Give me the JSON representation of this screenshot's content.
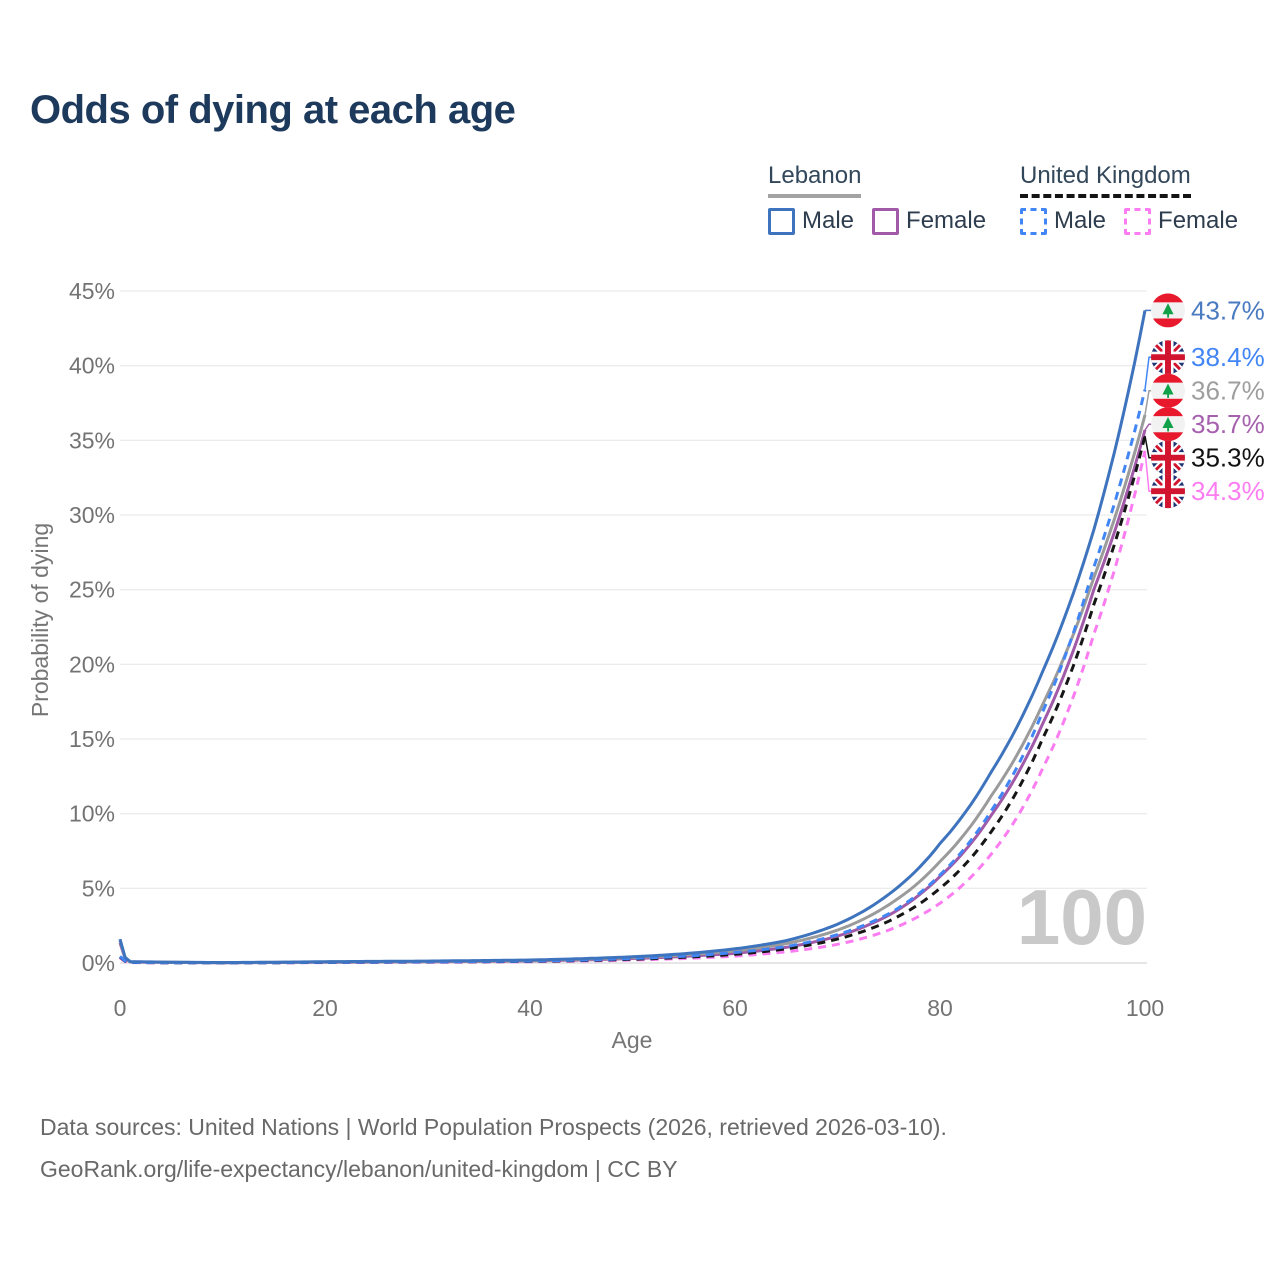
{
  "title": "Odds of dying at each age",
  "watermark": "100",
  "legend": {
    "groups": [
      {
        "name": "Lebanon",
        "line_style": "solid",
        "underline_color": "#a3a3a3",
        "items": [
          {
            "label": "Male",
            "color": "#3e73bd"
          },
          {
            "label": "Female",
            "color": "#a05aa8"
          }
        ]
      },
      {
        "name": "United Kingdom",
        "line_style": "dashed",
        "underline_color": "#141414",
        "items": [
          {
            "label": "Male",
            "color": "#4285f4"
          },
          {
            "label": "Female",
            "color": "#fb7df1"
          }
        ]
      }
    ]
  },
  "axes": {
    "x_label": "Age",
    "y_label": "Probability of dying",
    "x_ticks": [
      "0",
      "20",
      "40",
      "60",
      "80",
      "100"
    ],
    "x_tick_values": [
      0,
      20,
      40,
      60,
      80,
      100
    ],
    "y_ticks": [
      "0%",
      "5%",
      "10%",
      "15%",
      "20%",
      "25%",
      "30%",
      "35%",
      "40%",
      "45%"
    ],
    "y_tick_values": [
      0,
      5,
      10,
      15,
      20,
      25,
      30,
      35,
      40,
      45
    ]
  },
  "end_labels": [
    {
      "flag": "lebanon",
      "text": "43.7%",
      "value": 43.7,
      "color": "#4a7ac0"
    },
    {
      "flag": "uk",
      "text": "38.4%",
      "value": 38.4,
      "color": "#4285f4"
    },
    {
      "flag": "lebanon",
      "text": "36.7%",
      "value": 36.7,
      "color": "#9e9e9e"
    },
    {
      "flag": "lebanon",
      "text": "35.7%",
      "value": 35.7,
      "color": "#a661ae"
    },
    {
      "flag": "uk",
      "text": "35.3%",
      "value": 35.3,
      "color": "#121212"
    },
    {
      "flag": "uk",
      "text": "34.3%",
      "value": 34.3,
      "color": "#fb7df1"
    }
  ],
  "chart_data": {
    "type": "line",
    "title": "Odds of dying at each age",
    "xlabel": "Age",
    "ylabel": "Probability of dying",
    "xlim": [
      0,
      100
    ],
    "ylim": [
      0,
      45
    ],
    "y_unit": "%",
    "grid": true,
    "legend_position": "top-right",
    "series": [
      {
        "name": "Lebanon Female",
        "country": "Lebanon",
        "sex": "female",
        "color": "#a05aa8",
        "dash": "solid",
        "end_value": 35.7,
        "points": [
          [
            0,
            1.35
          ],
          [
            1,
            0.07
          ],
          [
            10,
            0.02
          ],
          [
            20,
            0.05
          ],
          [
            30,
            0.08
          ],
          [
            40,
            0.14
          ],
          [
            50,
            0.3
          ],
          [
            60,
            0.65
          ],
          [
            65,
            1.05
          ],
          [
            70,
            1.8
          ],
          [
            75,
            3.2
          ],
          [
            80,
            5.8
          ],
          [
            85,
            9.9
          ],
          [
            90,
            16.0
          ],
          [
            95,
            25.0
          ],
          [
            100,
            35.7
          ]
        ]
      },
      {
        "name": "Lebanon Both sexes",
        "country": "Lebanon",
        "sex": "both",
        "color": "#9b9b9b",
        "dash": "solid",
        "end_value": 36.7,
        "points": [
          [
            0,
            1.5
          ],
          [
            1,
            0.08
          ],
          [
            10,
            0.025
          ],
          [
            20,
            0.07
          ],
          [
            30,
            0.1
          ],
          [
            40,
            0.17
          ],
          [
            50,
            0.36
          ],
          [
            60,
            0.8
          ],
          [
            65,
            1.3
          ],
          [
            70,
            2.2
          ],
          [
            75,
            3.9
          ],
          [
            80,
            6.8
          ],
          [
            85,
            11.2
          ],
          [
            90,
            17.3
          ],
          [
            95,
            25.8
          ],
          [
            100,
            36.7
          ]
        ]
      },
      {
        "name": "United Kingdom Female",
        "country": "United Kingdom",
        "sex": "female",
        "color": "#fb7df1",
        "dash": "dashed",
        "end_value": 34.3,
        "points": [
          [
            0,
            0.35
          ],
          [
            1,
            0.03
          ],
          [
            10,
            0.009
          ],
          [
            20,
            0.03
          ],
          [
            30,
            0.05
          ],
          [
            40,
            0.09
          ],
          [
            50,
            0.2
          ],
          [
            60,
            0.46
          ],
          [
            65,
            0.75
          ],
          [
            70,
            1.25
          ],
          [
            75,
            2.2
          ],
          [
            80,
            4.0
          ],
          [
            85,
            7.3
          ],
          [
            90,
            13.0
          ],
          [
            95,
            22.0
          ],
          [
            100,
            34.3
          ]
        ]
      },
      {
        "name": "United Kingdom Both sexes",
        "country": "United Kingdom",
        "sex": "both",
        "color": "#161616",
        "dash": "dashed",
        "end_value": 35.3,
        "points": [
          [
            0,
            0.4
          ],
          [
            1,
            0.035
          ],
          [
            10,
            0.01
          ],
          [
            20,
            0.04
          ],
          [
            30,
            0.07
          ],
          [
            40,
            0.11
          ],
          [
            50,
            0.25
          ],
          [
            60,
            0.58
          ],
          [
            65,
            0.95
          ],
          [
            70,
            1.6
          ],
          [
            75,
            2.8
          ],
          [
            80,
            5.0
          ],
          [
            85,
            8.8
          ],
          [
            90,
            15.0
          ],
          [
            95,
            24.0
          ],
          [
            100,
            35.3
          ]
        ]
      },
      {
        "name": "United Kingdom Male",
        "country": "United Kingdom",
        "sex": "male",
        "color": "#4285f4",
        "dash": "dashed",
        "end_value": 38.4,
        "points": [
          [
            0,
            0.45
          ],
          [
            1,
            0.04
          ],
          [
            10,
            0.012
          ],
          [
            20,
            0.05
          ],
          [
            30,
            0.08
          ],
          [
            40,
            0.13
          ],
          [
            50,
            0.3
          ],
          [
            55,
            0.45
          ],
          [
            60,
            0.7
          ],
          [
            65,
            1.1
          ],
          [
            70,
            1.9
          ],
          [
            75,
            3.3
          ],
          [
            80,
            5.9
          ],
          [
            85,
            10.2
          ],
          [
            90,
            16.8
          ],
          [
            95,
            26.5
          ],
          [
            100,
            38.4
          ]
        ]
      },
      {
        "name": "Lebanon Male",
        "country": "Lebanon",
        "sex": "male",
        "color": "#3e73bd",
        "dash": "solid",
        "end_value": 43.7,
        "points": [
          [
            0,
            1.6
          ],
          [
            1,
            0.09
          ],
          [
            10,
            0.03
          ],
          [
            20,
            0.09
          ],
          [
            30,
            0.13
          ],
          [
            40,
            0.2
          ],
          [
            50,
            0.42
          ],
          [
            55,
            0.62
          ],
          [
            60,
            0.95
          ],
          [
            65,
            1.5
          ],
          [
            70,
            2.6
          ],
          [
            75,
            4.6
          ],
          [
            80,
            8.0
          ],
          [
            85,
            12.8
          ],
          [
            90,
            19.5
          ],
          [
            95,
            29.0
          ],
          [
            100,
            43.7
          ]
        ]
      }
    ]
  },
  "footer": {
    "line1": "Data sources: United Nations | World Population Prospects (2026, retrieved 2026-03-10).",
    "line2": "GeoRank.org/life-expectancy/lebanon/united-kingdom | CC BY"
  }
}
